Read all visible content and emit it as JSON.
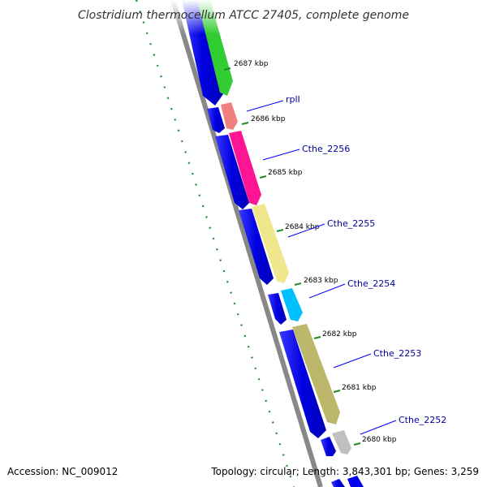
{
  "title": "Clostridium thermocellum ATCC 27405, complete genome",
  "footer": {
    "accession": "Accession: NC_009012",
    "topology": "Topology: circular; Length: 3,843,301 bp; Genes: 3,259"
  },
  "ticks": [
    {
      "label": "2687 kbp"
    },
    {
      "label": "2686 kbp"
    },
    {
      "label": "2685 kbp"
    },
    {
      "label": "2684 kbp"
    },
    {
      "label": "2683 kbp"
    },
    {
      "label": "2682 kbp"
    },
    {
      "label": "2681 kbp"
    },
    {
      "label": "2680 kbp"
    }
  ],
  "genes": [
    {
      "name": "rplI"
    },
    {
      "name": "Cthe_2256"
    },
    {
      "name": "Cthe_2255"
    },
    {
      "name": "Cthe_2254"
    },
    {
      "name": "Cthe_2253"
    },
    {
      "name": "Cthe_2252"
    }
  ],
  "colors": {
    "cds": "#0000ee",
    "backbone": "#888888",
    "gc_skew": "#228b22",
    "label_line": "#0000ff",
    "label_text": "#0000a0",
    "rplI": "#f08080",
    "Cthe_2256": "#ff1493",
    "Cthe_2255": "#f0e68c",
    "Cthe_2254": "#00bfff",
    "Cthe_2253": "#bdb76b",
    "Cthe_2252": "#c0c0c0",
    "upstream_gene": "#32cd32"
  }
}
